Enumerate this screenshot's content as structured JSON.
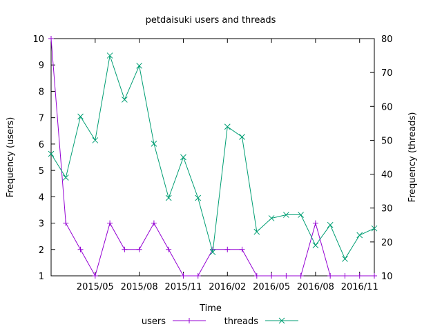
{
  "chart_data": {
    "type": "line",
    "title": "petdaisuki users and threads",
    "xlabel": "Time",
    "ylabel_left": "Frequency (users)",
    "ylabel_right": "Frequency (threads)",
    "x_domain": [
      "2015-02",
      "2016-12"
    ],
    "ylim_left": [
      1,
      10
    ],
    "ylim_right": [
      10,
      80
    ],
    "y_ticks_left": [
      "1",
      "2",
      "3",
      "4",
      "5",
      "6",
      "7",
      "8",
      "9",
      "10"
    ],
    "y_ticks_right": [
      "10",
      "20",
      "30",
      "40",
      "50",
      "60",
      "70",
      "80"
    ],
    "x_ticks": [
      "2015/05",
      "2015/08",
      "2015/11",
      "2016/02",
      "2016/05",
      "2016/08",
      "2016/11"
    ],
    "x_tick_dates": [
      "2015-05",
      "2015-08",
      "2015-11",
      "2016-02",
      "2016-05",
      "2016-08",
      "2016-11"
    ],
    "x": [
      "2015-02",
      "2015-03",
      "2015-04",
      "2015-05",
      "2015-06",
      "2015-07",
      "2015-08",
      "2015-09",
      "2015-10",
      "2015-11",
      "2015-12",
      "2016-01",
      "2016-02",
      "2016-03",
      "2016-04",
      "2016-05",
      "2016-06",
      "2016-07",
      "2016-08",
      "2016-09",
      "2016-10",
      "2016-11",
      "2016-12"
    ],
    "legend_position": "bottom",
    "grid": false,
    "series": [
      {
        "name": "users",
        "axis": "left",
        "color": "#9400d3",
        "marker": "plus",
        "values": [
          10,
          3,
          2,
          1,
          3,
          2,
          2,
          3,
          2,
          1,
          1,
          2,
          2,
          2,
          1,
          1,
          1,
          1,
          3,
          1,
          1,
          1,
          1
        ]
      },
      {
        "name": "threads",
        "axis": "right",
        "color": "#009e73",
        "marker": "cross",
        "values": [
          46,
          39,
          57,
          50,
          75,
          62,
          72,
          49,
          33,
          45,
          33,
          17,
          54,
          51,
          23,
          27,
          28,
          28,
          19,
          25,
          15,
          22,
          24
        ]
      }
    ]
  }
}
